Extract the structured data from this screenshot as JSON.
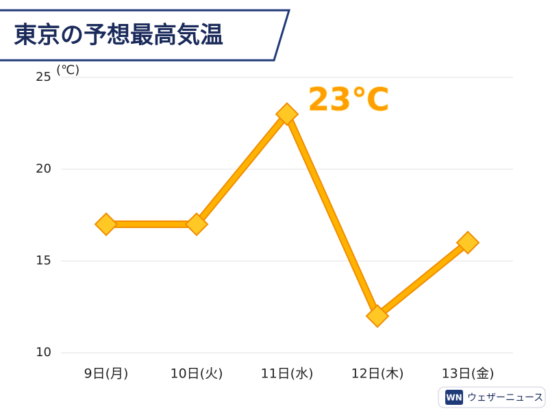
{
  "chart_data": {
    "type": "line",
    "title": "東京の予想最高気温",
    "y_unit": "(℃)",
    "categories": [
      "9日(月)",
      "10日(火)",
      "11日(水)",
      "12日(木)",
      "13日(金)"
    ],
    "values": [
      17,
      17,
      23,
      12,
      16
    ],
    "value_labels": [
      null,
      null,
      "23℃",
      null,
      null
    ],
    "color": "#ffb300",
    "ylim": [
      10,
      25
    ],
    "yticks": [
      10,
      15,
      20,
      25
    ],
    "grid": true
  },
  "logo": {
    "icon": "WN",
    "text": "ウェザーニュース"
  }
}
